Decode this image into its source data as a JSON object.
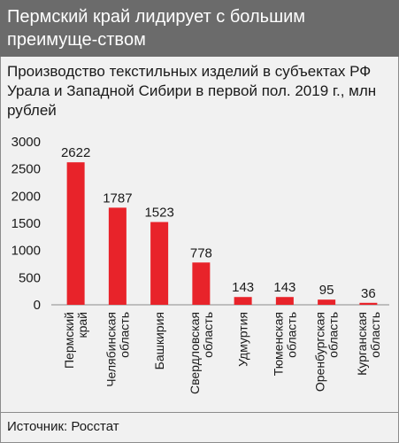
{
  "header": {
    "title": "Пермский край лидирует с большим преимуще-ствoм"
  },
  "chart_data": {
    "type": "bar",
    "title": "Производство текстильных изделий в субъектах РФ Урала и Западной Сибири в первой пол. 2019 г., млн рублей",
    "categories": [
      [
        "Пермский",
        "край"
      ],
      [
        "Челябинская",
        "область"
      ],
      [
        "Башкирия"
      ],
      [
        "Свердловская",
        "область"
      ],
      [
        "Удмуртия"
      ],
      [
        "Тюменская",
        "область"
      ],
      [
        "Оренбургская",
        "область"
      ],
      [
        "Курганская",
        "область"
      ]
    ],
    "values": [
      2622,
      1787,
      1523,
      778,
      143,
      143,
      95,
      36
    ],
    "ylim": [
      0,
      3000
    ],
    "yticks": [
      0,
      500,
      1000,
      1500,
      2000,
      2500,
      3000
    ],
    "grid": false,
    "bar_color": "#e8232a"
  },
  "footer": {
    "source": "Источник: Росстат"
  }
}
